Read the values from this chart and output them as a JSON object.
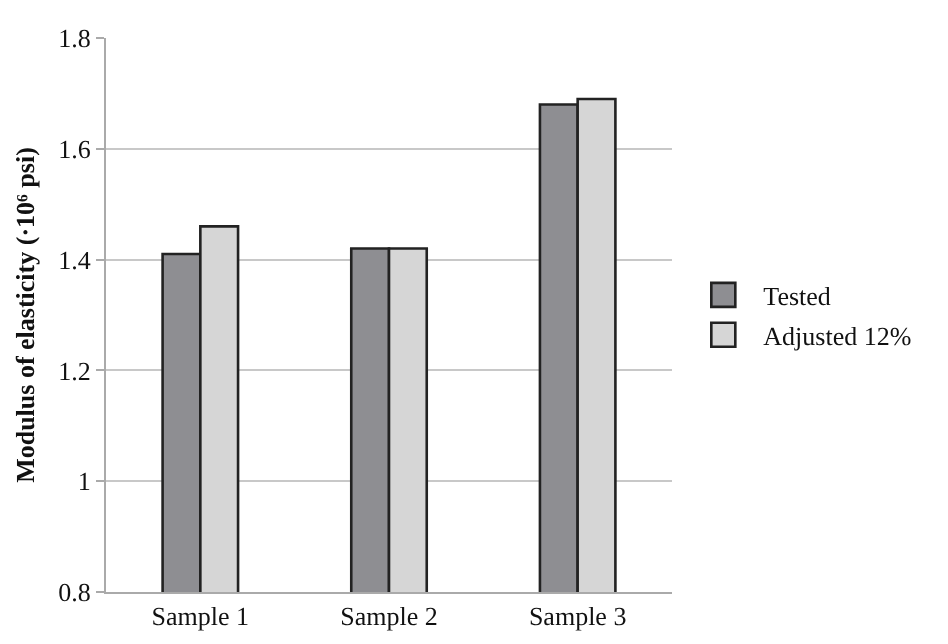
{
  "chart_data": {
    "type": "bar",
    "ylabel": "Modulus of elasticity (·10⁶ psi)",
    "categories": [
      "Sample 1",
      "Sample 2",
      "Sample 3"
    ],
    "series": [
      {
        "name": "Tested",
        "color": "#8e8e92",
        "values": [
          1.41,
          1.42,
          1.68
        ]
      },
      {
        "name": "Adjusted 12%",
        "color": "#d6d6d6",
        "values": [
          1.46,
          1.42,
          1.69
        ]
      }
    ],
    "ylim": [
      0.8,
      1.8
    ],
    "yticks": [
      0.8,
      1,
      1.2,
      1.4,
      1.6,
      1.8
    ],
    "grid": "y",
    "legend": "right"
  }
}
